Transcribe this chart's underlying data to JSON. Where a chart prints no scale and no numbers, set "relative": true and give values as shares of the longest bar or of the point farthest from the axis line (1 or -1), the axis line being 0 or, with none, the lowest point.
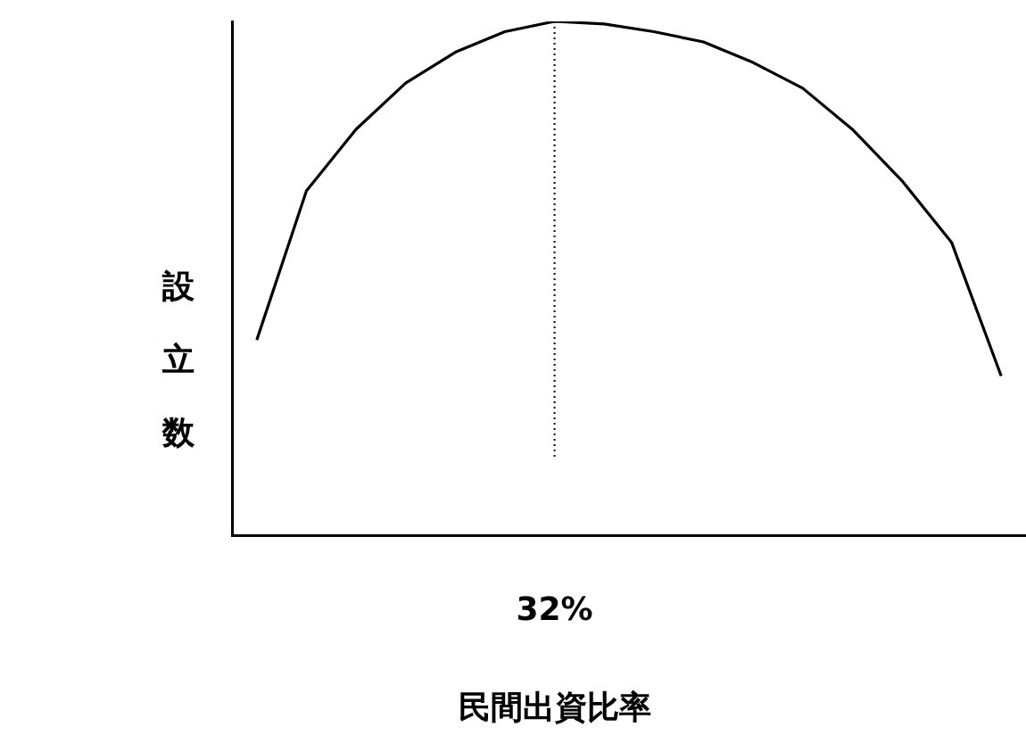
{
  "chart_data": {
    "type": "line",
    "relative": true,
    "xlabel": "民間出資比率",
    "ylabel": "設立数",
    "grid": false,
    "legend": false,
    "marker": "none",
    "line_style": "solid",
    "categories": [
      null,
      null,
      null,
      null,
      null,
      null,
      null,
      null,
      null,
      null,
      null,
      null,
      null,
      null,
      null,
      null
    ],
    "series": [
      {
        "color": "#000000",
        "values": [
          0.38,
          0.67,
          0.79,
          0.88,
          0.94,
          0.98,
          1.0,
          0.995,
          0.98,
          0.96,
          0.92,
          0.87,
          0.79,
          0.69,
          0.57,
          0.31
        ]
      }
    ],
    "annotations": [
      "32%"
    ]
  }
}
